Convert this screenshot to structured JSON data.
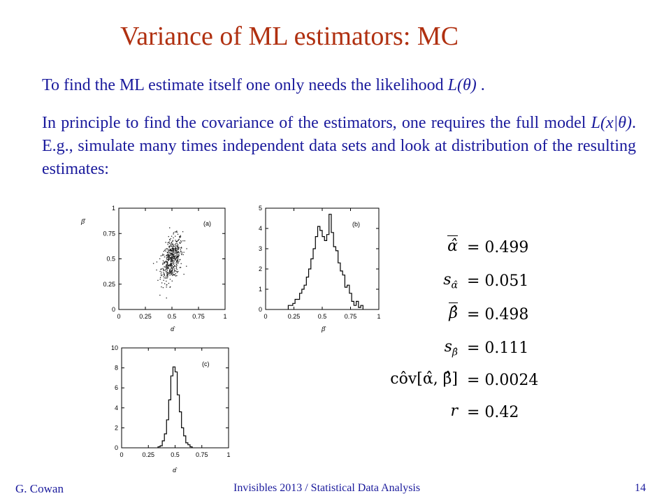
{
  "slide": {
    "title": "Variance of ML estimators:  MC",
    "para1_pre": "To find the ML estimate itself one only needs the likelihood ",
    "para1_math": "L(θ)",
    "para1_post": " .",
    "para2_a": "In principle to find the covariance of the estimators, one requires the full model ",
    "para2_math": "L(x|θ)",
    "para2_b": ".  E.g., simulate many times independent data sets and look at distribution of the resulting estimates:"
  },
  "footer": {
    "author": "G. Cowan",
    "venue": "Invisibles 2013 / Statistical Data Analysis",
    "page": "14"
  },
  "equations": [
    {
      "lhs": "α̂",
      "overline": true,
      "rhs": "=  0.499"
    },
    {
      "lhs": "s",
      "sub": "α̂",
      "rhs": "=  0.051"
    },
    {
      "lhs": "β̂",
      "overline": true,
      "rhs": "=  0.498"
    },
    {
      "lhs": "s",
      "sub": "β̂",
      "rhs": "=  0.111"
    },
    {
      "lhs": "côv[α̂, β̂]",
      "rhs": "=  0.0024"
    },
    {
      "lhs": "r",
      "rhs": "=  0.42"
    }
  ],
  "chart_data": [
    {
      "type": "scatter",
      "panel": "(a)",
      "xlabel": "α̂",
      "ylabel": "β̂",
      "xlim": [
        0,
        1
      ],
      "ylim": [
        0,
        1
      ],
      "xticks": [
        "0",
        "0.25",
        "0.5",
        "0.75",
        "1"
      ],
      "yticks": [
        "0",
        "0.25",
        "0.5",
        "0.75",
        "1"
      ],
      "cloud": {
        "mean_x": 0.5,
        "mean_y": 0.5,
        "sd_x": 0.05,
        "sd_y": 0.11,
        "r": 0.42,
        "n": 500
      }
    },
    {
      "type": "bar",
      "panel": "(b)",
      "xlabel": "β̂",
      "xlim": [
        0,
        1
      ],
      "ylim": [
        0,
        5
      ],
      "xticks": [
        "0",
        "0.25",
        "0.5",
        "0.75",
        "1"
      ],
      "yticks": [
        "0",
        "1",
        "2",
        "3",
        "4",
        "5"
      ],
      "bin_width": 0.02,
      "bin_start": 0.2,
      "values": [
        0.2,
        0.2,
        0.3,
        0.5,
        0.5,
        0.8,
        1.0,
        1.2,
        1.6,
        2.0,
        2.5,
        3.0,
        3.6,
        4.1,
        3.9,
        3.6,
        3.4,
        3.7,
        4.7,
        3.8,
        3.1,
        2.9,
        2.3,
        1.9,
        1.7,
        1.1,
        1.2,
        0.8,
        0.4,
        0.2,
        0.4,
        0.1,
        0.2
      ]
    },
    {
      "type": "bar",
      "panel": "(c)",
      "xlabel": "α̂",
      "xlim": [
        0,
        1
      ],
      "ylim": [
        0,
        10
      ],
      "xticks": [
        "0",
        "0.25",
        "0.5",
        "0.75",
        "1"
      ],
      "yticks": [
        "0",
        "2",
        "4",
        "6",
        "8",
        "10"
      ],
      "bin_width": 0.02,
      "bin_start": 0.34,
      "values": [
        0.1,
        0.2,
        0.7,
        1.4,
        2.8,
        4.8,
        7.2,
        8.1,
        7.6,
        5.3,
        3.6,
        2.0,
        1.2,
        0.5,
        0.3,
        0.1
      ]
    }
  ]
}
